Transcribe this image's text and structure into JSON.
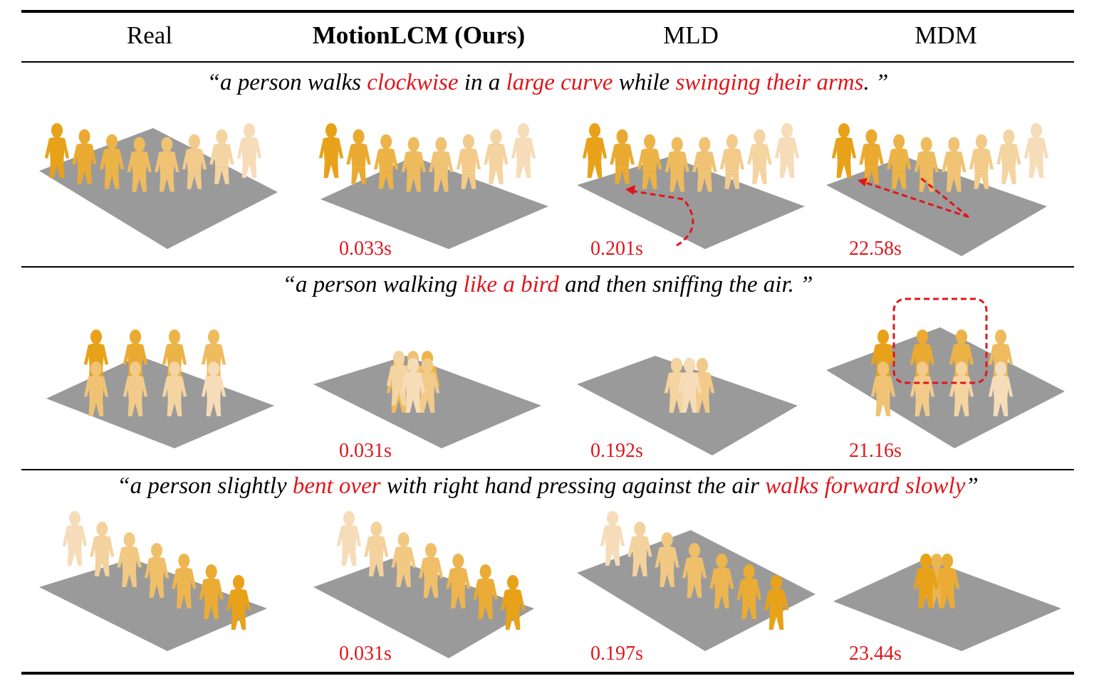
{
  "header": {
    "real": "Real",
    "ours": "MotionLCM (Ours)",
    "mld": "MLD",
    "mdm": "MDM"
  },
  "rows": [
    {
      "caption": [
        {
          "t": "“a person walks ",
          "hl": false
        },
        {
          "t": "clockwise",
          "hl": true
        },
        {
          "t": " in a ",
          "hl": false
        },
        {
          "t": "large curve",
          "hl": true
        },
        {
          "t": " while ",
          "hl": false
        },
        {
          "t": "swinging their arms",
          "hl": true
        },
        {
          "t": ". ”",
          "hl": false
        }
      ],
      "times": {
        "ours": "0.033s",
        "mld": "0.201s",
        "mdm": "22.58s"
      }
    },
    {
      "caption": [
        {
          "t": "“a person walking ",
          "hl": false
        },
        {
          "t": "like a bird",
          "hl": true
        },
        {
          "t": " and then sniffing the air. ”",
          "hl": false
        }
      ],
      "times": {
        "ours": "0.031s",
        "mld": "0.192s",
        "mdm": "21.16s"
      }
    },
    {
      "caption": [
        {
          "t": "“a person slightly ",
          "hl": false
        },
        {
          "t": "bent over",
          "hl": true
        },
        {
          "t": " with right hand pressing against the air ",
          "hl": false
        },
        {
          "t": "walks forward slowly",
          "hl": true
        },
        {
          "t": "”",
          "hl": false
        }
      ],
      "times": {
        "ours": "0.031s",
        "mld": "0.197s",
        "mdm": "23.44s"
      }
    }
  ],
  "colors": {
    "highlight": "#e0161b",
    "figure_dark": "#e8a21a",
    "figure_light": "#f6dcb8",
    "floor": "#9a9a9a"
  }
}
